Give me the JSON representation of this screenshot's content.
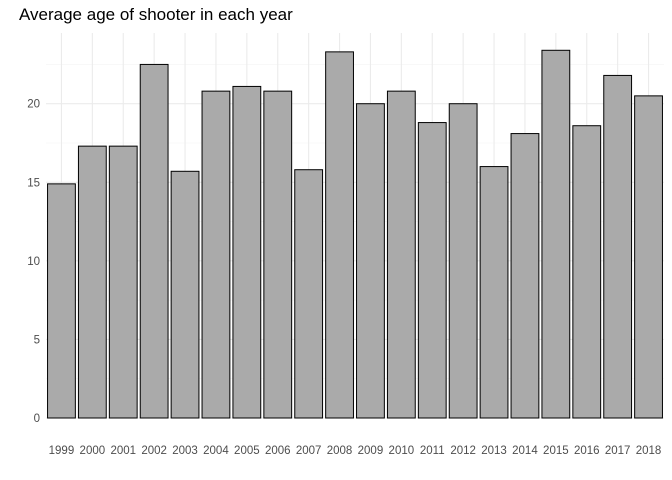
{
  "chart_data": {
    "type": "bar",
    "title": "Average age of shooter in each year",
    "xlabel": "",
    "ylabel": "",
    "categories": [
      "1999",
      "2000",
      "2001",
      "2002",
      "2003",
      "2004",
      "2005",
      "2006",
      "2007",
      "2008",
      "2009",
      "2010",
      "2011",
      "2012",
      "2013",
      "2014",
      "2015",
      "2016",
      "2017",
      "2018"
    ],
    "values": [
      14.9,
      17.3,
      17.3,
      22.5,
      15.7,
      20.8,
      21.1,
      20.8,
      15.8,
      23.3,
      20.0,
      20.8,
      18.8,
      20.0,
      16.0,
      18.1,
      23.4,
      18.6,
      21.8,
      20.5
    ],
    "y_ticks": [
      "0",
      "5",
      "10",
      "15",
      "20"
    ],
    "ylim": [
      0,
      24.5
    ],
    "grid": true,
    "legend": "none",
    "colors": {
      "bar_fill": "#aaaaaa",
      "bar_stroke": "#000000",
      "grid_major": "#ebebeb",
      "grid_minor": "#f5f5f5",
      "tick_text": "#4d4d4d"
    }
  }
}
